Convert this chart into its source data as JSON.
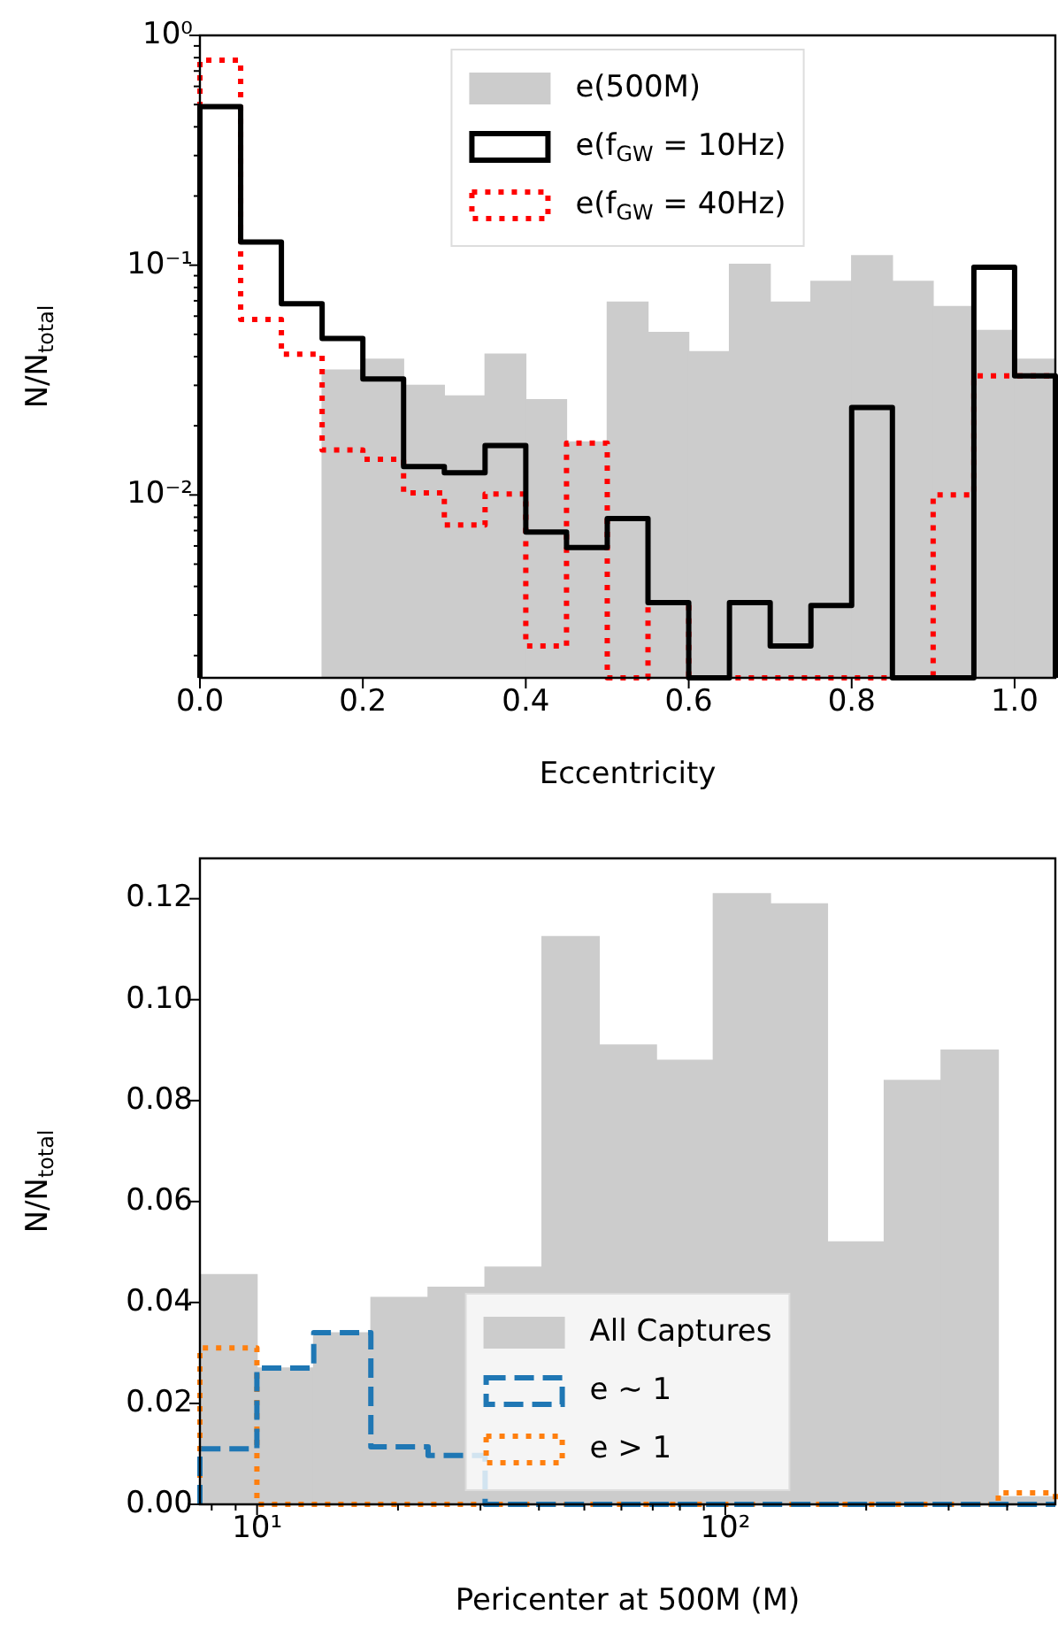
{
  "chart_data": [
    {
      "type": "histogram",
      "xlabel": "Eccentricity",
      "ylabel": "N/N$_{total}$",
      "log": "y",
      "grid": false,
      "legend": "top",
      "bins": [
        0,
        0.05,
        0.1,
        0.15,
        0.2,
        0.25,
        0.3,
        0.35,
        0.4,
        0.45,
        0.5,
        0.55,
        0.6,
        0.65,
        0.7,
        0.75,
        0.8,
        0.85,
        0.9,
        0.95,
        1.0,
        1.05
      ],
      "xlim": [
        0,
        1.05
      ],
      "xticks": [
        {
          "value": 0,
          "label": "0.0"
        },
        {
          "value": 0.2,
          "label": "0.2"
        },
        {
          "value": 0.4,
          "label": "0.4"
        },
        {
          "value": 0.6,
          "label": "0.6"
        },
        {
          "value": 0.8,
          "label": "0.8"
        },
        {
          "value": 1.0,
          "label": "1.0"
        }
      ],
      "ylim": [
        0.0016,
        1
      ],
      "yticks": [
        {
          "value": 0.002,
          "label": null
        },
        {
          "value": 0.003,
          "label": null
        },
        {
          "value": 0.004,
          "label": null
        },
        {
          "value": 0.005,
          "label": null
        },
        {
          "value": 0.006,
          "label": null
        },
        {
          "value": 0.007,
          "label": null
        },
        {
          "value": 0.008,
          "label": null
        },
        {
          "value": 0.009,
          "label": null
        },
        {
          "value": 0.01,
          "label": "10⁻²"
        },
        {
          "value": 0.02,
          "label": null
        },
        {
          "value": 0.03,
          "label": null
        },
        {
          "value": 0.04,
          "label": null
        },
        {
          "value": 0.05,
          "label": null
        },
        {
          "value": 0.06,
          "label": null
        },
        {
          "value": 0.07,
          "label": null
        },
        {
          "value": 0.08,
          "label": null
        },
        {
          "value": 0.09,
          "label": null
        },
        {
          "value": 0.1,
          "label": "10⁻¹"
        },
        {
          "value": 0.2,
          "label": null
        },
        {
          "value": 0.3,
          "label": null
        },
        {
          "value": 0.4,
          "label": null
        },
        {
          "value": 0.5,
          "label": null
        },
        {
          "value": 0.6,
          "label": null
        },
        {
          "value": 0.7,
          "label": null
        },
        {
          "value": 0.8,
          "label": null
        },
        {
          "value": 0.9,
          "label": null
        },
        {
          "value": 1,
          "label": "10⁰"
        }
      ],
      "series": [
        {
          "name": "e(500M)",
          "color": "#cccccc",
          "values": [
            null,
            null,
            null,
            0.035,
            0.039,
            0.03,
            0.027,
            0.041,
            0.026,
            0.017,
            0.069,
            0.051,
            0.042,
            0.101,
            0.069,
            0.085,
            0.11,
            0.085,
            0.066,
            0.052,
            0.039
          ]
        },
        {
          "name": "e(f$_{GW}$ = 10Hz)",
          "color": "#000000",
          "line_style": "solid",
          "values": [
            0.49,
            0.126,
            0.068,
            0.048,
            0.032,
            0.0133,
            0.0125,
            0.0164,
            0.0069,
            0.0059,
            0.0079,
            0.0034,
            null,
            0.0034,
            0.0022,
            0.0033,
            0.024,
            null,
            null,
            0.098,
            0.033
          ]
        },
        {
          "name": "e(f$_{GW}$ = 40Hz)",
          "color": "#ff0000",
          "line_style": "dotted",
          "values": [
            0.78,
            0.058,
            0.041,
            0.0157,
            0.0143,
            0.0102,
            0.0074,
            0.0101,
            0.0022,
            0.0168,
            null,
            0.0034,
            null,
            null,
            null,
            null,
            null,
            null,
            0.01,
            0.033,
            0.033
          ]
        }
      ]
    },
    {
      "type": "histogram",
      "xlabel": "Pericenter at 500M (M)",
      "ylabel": "N/N$_{total}$",
      "log": "x",
      "grid": false,
      "legend": "bottom",
      "bins": [
        7.55,
        10,
        13.2,
        17.5,
        23.2,
        30.7,
        40.6,
        53.8,
        71.3,
        94.2,
        125,
        165,
        219,
        289,
        383,
        507
      ],
      "xlim": [
        7.55,
        507
      ],
      "xticks": [
        {
          "value": 8,
          "label": null
        },
        {
          "value": 9,
          "label": null
        },
        {
          "value": 10,
          "label": "10¹"
        },
        {
          "value": 20,
          "label": null
        },
        {
          "value": 30,
          "label": null
        },
        {
          "value": 40,
          "label": null
        },
        {
          "value": 50,
          "label": null
        },
        {
          "value": 60,
          "label": null
        },
        {
          "value": 70,
          "label": null
        },
        {
          "value": 80,
          "label": null
        },
        {
          "value": 90,
          "label": null
        },
        {
          "value": 100,
          "label": "10²"
        },
        {
          "value": 200,
          "label": null
        },
        {
          "value": 300,
          "label": null
        },
        {
          "value": 400,
          "label": null
        }
      ],
      "ylim": [
        0,
        0.128
      ],
      "yticks": [
        {
          "value": 0,
          "label": "0.00"
        },
        {
          "value": 0.02,
          "label": "0.02"
        },
        {
          "value": 0.04,
          "label": "0.04"
        },
        {
          "value": 0.06,
          "label": "0.06"
        },
        {
          "value": 0.08,
          "label": "0.08"
        },
        {
          "value": 0.1,
          "label": "0.10"
        },
        {
          "value": 0.12,
          "label": "0.12"
        }
      ],
      "series": [
        {
          "name": "All Captures",
          "color": "#cccccc",
          "values": [
            0.0455,
            0.027,
            0.034,
            0.041,
            0.043,
            0.047,
            0.1125,
            0.091,
            0.088,
            0.121,
            0.119,
            0.052,
            0.084,
            0.09,
            0.0015
          ]
        },
        {
          "name": "e ~ 1",
          "color": "#1f77b4",
          "line_style": "dashed",
          "values": [
            0.011,
            0.027,
            0.034,
            0.0114,
            0.0097,
            0,
            0,
            0,
            0,
            0,
            0,
            0,
            0,
            0,
            0
          ]
        },
        {
          "name": "e > 1",
          "color": "#ff7f0e",
          "line_style": "dotted",
          "values": [
            0.031,
            0,
            0,
            0,
            0,
            0,
            0,
            0,
            0,
            0,
            0,
            0,
            0,
            0,
            0.0023
          ]
        }
      ]
    }
  ]
}
